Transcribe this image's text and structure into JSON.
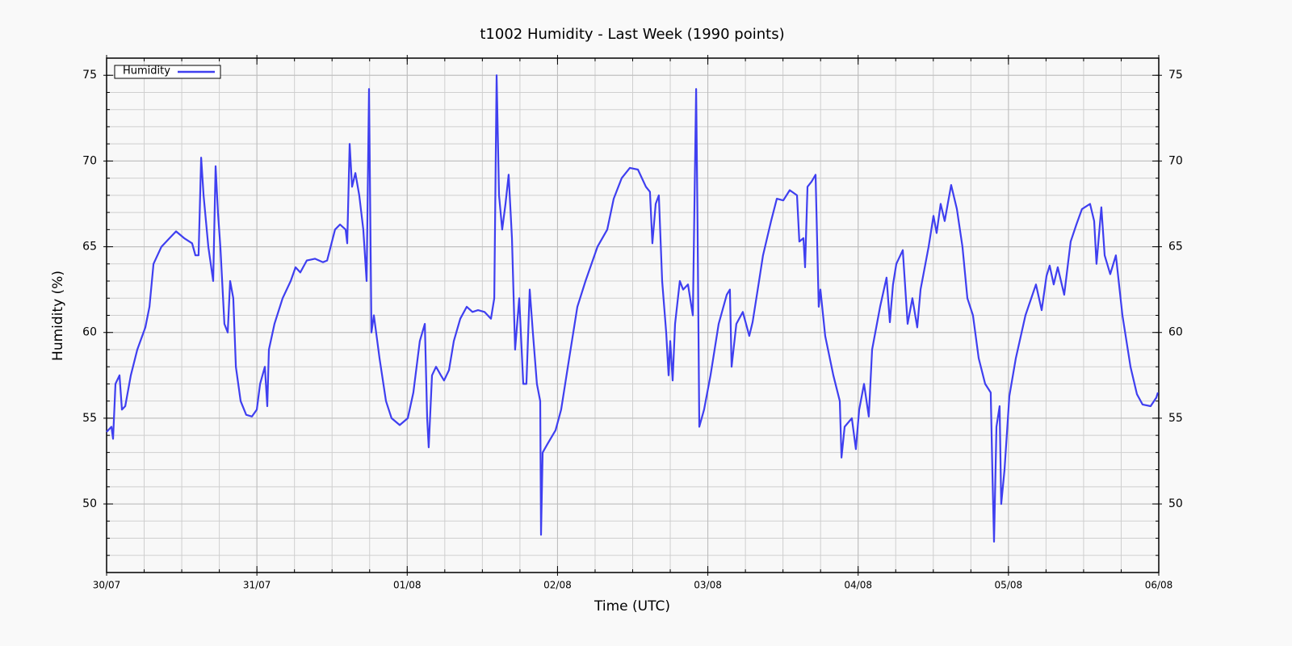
{
  "chart_data": {
    "type": "line",
    "title": "t1002 Humidity - Last Week (1990 points)",
    "xlabel": "Time (UTC)",
    "ylabel": "Humidity (%)",
    "x": [
      0,
      0.032,
      0.043,
      0.059,
      0.086,
      0.102,
      0.124,
      0.161,
      0.204,
      0.258,
      0.285,
      0.312,
      0.365,
      0.419,
      0.462,
      0.516,
      0.569,
      0.591,
      0.612,
      0.629,
      0.645,
      0.677,
      0.709,
      0.725,
      0.741,
      0.757,
      0.784,
      0.806,
      0.822,
      0.843,
      0.86,
      0.892,
      0.929,
      0.967,
      0.999,
      1.021,
      1.053,
      1.069,
      1.08,
      1.117,
      1.171,
      1.225,
      1.257,
      1.289,
      1.332,
      1.386,
      1.44,
      1.467,
      1.52,
      1.553,
      1.59,
      1.601,
      1.617,
      1.633,
      1.655,
      1.681,
      1.708,
      1.73,
      1.746,
      1.762,
      1.778,
      1.816,
      1.859,
      1.896,
      1.95,
      2.004,
      2.041,
      2.084,
      2.117,
      2.133,
      2.143,
      2.165,
      2.192,
      2.224,
      2.245,
      2.278,
      2.31,
      2.353,
      2.396,
      2.434,
      2.471,
      2.514,
      2.557,
      2.579,
      2.595,
      2.611,
      2.632,
      2.654,
      2.675,
      2.697,
      2.718,
      2.745,
      2.772,
      2.793,
      2.815,
      2.836,
      2.863,
      2.885,
      2.89,
      2.901,
      2.933,
      2.987,
      3.024,
      3.078,
      3.132,
      3.186,
      3.266,
      3.331,
      3.374,
      3.427,
      3.481,
      3.535,
      3.588,
      3.615,
      3.631,
      3.653,
      3.674,
      3.696,
      3.723,
      3.739,
      3.75,
      3.766,
      3.782,
      3.814,
      3.836,
      3.868,
      3.9,
      3.922,
      3.932,
      3.943,
      3.975,
      4.018,
      4.072,
      4.126,
      4.147,
      4.158,
      4.19,
      4.233,
      4.276,
      4.298,
      4.341,
      4.367,
      4.421,
      4.459,
      4.502,
      4.545,
      4.593,
      4.609,
      4.636,
      4.647,
      4.663,
      4.69,
      4.717,
      4.738,
      4.749,
      4.781,
      4.835,
      4.878,
      4.889,
      4.91,
      4.958,
      4.985,
      5.007,
      5.039,
      5.071,
      5.093,
      5.146,
      5.189,
      5.211,
      5.232,
      5.254,
      5.297,
      5.329,
      5.361,
      5.393,
      5.415,
      5.469,
      5.501,
      5.522,
      5.549,
      5.576,
      5.619,
      5.657,
      5.694,
      5.727,
      5.764,
      5.802,
      5.845,
      5.882,
      5.893,
      5.904,
      5.92,
      5.941,
      5.952,
      5.974,
      6.006,
      6.049,
      6.113,
      6.183,
      6.221,
      6.253,
      6.274,
      6.301,
      6.328,
      6.371,
      6.414,
      6.452,
      6.489,
      6.543,
      6.57,
      6.586,
      6.618,
      6.64,
      6.677,
      6.715,
      6.758,
      6.812,
      6.855,
      6.892,
      6.946,
      6.984,
      6.994
    ],
    "series": [
      {
        "name": "Humidity",
        "color": "#3f3ff0",
        "values": [
          54.2,
          54.5,
          53.8,
          57.0,
          57.5,
          55.5,
          55.7,
          57.5,
          59,
          60.3,
          61.5,
          64,
          65,
          65.5,
          65.9,
          65.5,
          65.2,
          64.5,
          64.5,
          70.2,
          68,
          65,
          63,
          69.7,
          67,
          65,
          60.5,
          60,
          63,
          62,
          58,
          56,
          55.2,
          55.1,
          55.5,
          57,
          58,
          55.7,
          59,
          60.5,
          62,
          63,
          63.8,
          63.5,
          64.2,
          64.3,
          64.1,
          64.2,
          66,
          66.3,
          66,
          65.2,
          71,
          68.5,
          69.3,
          68,
          66,
          63,
          74.2,
          60,
          61,
          58.5,
          56,
          55,
          54.6,
          55,
          56.5,
          59.5,
          60.5,
          55,
          53.3,
          57.5,
          58,
          57.5,
          57.2,
          57.8,
          59.5,
          60.8,
          61.5,
          61.2,
          61.3,
          61.2,
          60.8,
          62,
          75,
          68,
          66,
          67.5,
          69.2,
          65.5,
          59,
          62,
          57,
          57,
          62.5,
          60,
          57,
          56,
          48.2,
          53,
          53.5,
          54.3,
          55.5,
          58.5,
          61.5,
          63,
          65,
          66,
          67.8,
          69,
          69.6,
          69.5,
          68.5,
          68.2,
          65.2,
          67.5,
          68,
          63,
          60,
          57.5,
          59.5,
          57.2,
          60.5,
          63,
          62.5,
          62.8,
          61,
          74.2,
          66,
          54.5,
          55.5,
          57.5,
          60.5,
          62.2,
          62.5,
          58,
          60.5,
          61.2,
          59.8,
          60.6,
          63,
          64.5,
          66.5,
          67.8,
          67.7,
          68.3,
          68,
          65.3,
          65.5,
          63.8,
          68.5,
          68.8,
          69.2,
          61.5,
          62.5,
          59.8,
          57.5,
          56,
          52.7,
          54.5,
          55,
          53.2,
          55.5,
          57,
          55.1,
          59,
          61.5,
          63.2,
          60.6,
          62.8,
          64,
          64.8,
          60.5,
          62,
          60.3,
          62.5,
          65,
          66.8,
          65.8,
          67.5,
          66.5,
          68.6,
          67.2,
          65,
          62,
          61,
          58.5,
          57,
          56.5,
          52,
          47.8,
          54.5,
          55.7,
          50,
          52,
          56.3,
          58.5,
          61,
          62.8,
          61.3,
          63.3,
          63.9,
          62.8,
          63.8,
          62.2,
          65.3,
          66.3,
          67.2,
          67.5,
          66.5,
          64,
          67.3,
          64.5,
          63.4,
          64.5,
          61,
          58,
          56.4,
          55.8,
          55.7,
          56.2,
          56.5
        ]
      }
    ],
    "xlim": [
      0,
      7
    ],
    "xticks": [
      {
        "value": 0,
        "label": "30/07"
      },
      {
        "value": 1,
        "label": "31/07"
      },
      {
        "value": 2,
        "label": "01/08"
      },
      {
        "value": 3,
        "label": "02/08"
      },
      {
        "value": 4,
        "label": "03/08"
      },
      {
        "value": 5,
        "label": "04/08"
      },
      {
        "value": 6,
        "label": "05/08"
      },
      {
        "value": 7,
        "label": "06/08"
      }
    ],
    "ylim": [
      46,
      76
    ],
    "yticks": [
      50,
      55,
      60,
      65,
      70,
      75
    ],
    "grid": true,
    "legend": "upper left"
  }
}
